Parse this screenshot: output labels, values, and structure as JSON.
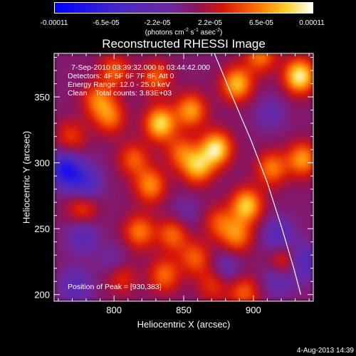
{
  "colorbar": {
    "tick_labels": [
      "-0.00011",
      "-6.5e-05",
      "-2.2e-05",
      "2.2e-05",
      "6.5e-05",
      "0.00011"
    ],
    "tick_values": [
      -0.00011,
      -6.5e-05,
      -2.2e-05,
      2.2e-05,
      6.5e-05,
      0.00011
    ],
    "unit_main": "(photons cm",
    "unit_sup1": "-2",
    "unit_mid1": " s",
    "unit_sup2": "-1",
    "unit_mid2": " asec",
    "unit_sup3": "-2",
    "unit_end": ")"
  },
  "annotations": {
    "time_range": "7-Sep-2010 03:39:32.000 to 03:44:42.000",
    "detectors": "Detectors: 4F 5F 6F 7F 8F, Att 0",
    "energy": "Energy Range: 12.0 - 25.0 keV",
    "clean": "Clean    Total counts: 3.83E+03",
    "peak": "Position of Peak = [930,383]"
  },
  "footer": "4-Aug-2013 14:39",
  "chart_data": {
    "type": "heatmap",
    "title": "Reconstructed RHESSI Image",
    "xlabel": "Heliocentric X (arcsec)",
    "ylabel": "Heliocentric Y (arcsec)",
    "xlim": [
      757,
      943
    ],
    "ylim": [
      195,
      383
    ],
    "x_ticks": [
      800,
      850,
      900
    ],
    "y_ticks": [
      200,
      250,
      300,
      350
    ],
    "colorbar_range": [
      -0.00011,
      0.00011
    ],
    "colormap": "blue-purple-red-orange-yellow-white",
    "peak": [
      930,
      383
    ],
    "limb": [
      [
        872,
        383
      ],
      [
        885,
        350
      ],
      [
        898,
        318
      ],
      [
        910,
        285
      ],
      [
        920,
        252
      ],
      [
        929,
        220
      ],
      [
        934,
        200
      ]
    ],
    "blobs": [
      {
        "x": 888,
        "y": 360,
        "v": 0.8
      },
      {
        "x": 905,
        "y": 382,
        "v": 0.6
      },
      {
        "x": 933,
        "y": 366,
        "v": 1.0
      },
      {
        "x": 935,
        "y": 303,
        "v": 0.7
      },
      {
        "x": 913,
        "y": 296,
        "v": 0.6
      },
      {
        "x": 873,
        "y": 311,
        "v": 0.95
      },
      {
        "x": 860,
        "y": 297,
        "v": 0.75
      },
      {
        "x": 855,
        "y": 340,
        "v": 0.7
      },
      {
        "x": 833,
        "y": 330,
        "v": 0.9
      },
      {
        "x": 848,
        "y": 308,
        "v": 0.5
      },
      {
        "x": 826,
        "y": 283,
        "v": 0.65
      },
      {
        "x": 814,
        "y": 303,
        "v": 0.5
      },
      {
        "x": 797,
        "y": 335,
        "v": 0.55
      },
      {
        "x": 788,
        "y": 348,
        "v": 0.55
      },
      {
        "x": 800,
        "y": 370,
        "v": 0.5
      },
      {
        "x": 830,
        "y": 365,
        "v": 0.5
      },
      {
        "x": 818,
        "y": 248,
        "v": 0.6
      },
      {
        "x": 842,
        "y": 246,
        "v": 0.55
      },
      {
        "x": 836,
        "y": 215,
        "v": 0.55
      },
      {
        "x": 858,
        "y": 228,
        "v": 0.5
      },
      {
        "x": 875,
        "y": 255,
        "v": 0.45
      },
      {
        "x": 895,
        "y": 268,
        "v": 0.85
      },
      {
        "x": 888,
        "y": 245,
        "v": 0.6
      },
      {
        "x": 922,
        "y": 225,
        "v": 0.55
      },
      {
        "x": 777,
        "y": 266,
        "v": 0.45
      },
      {
        "x": 769,
        "y": 320,
        "v": 0.4
      },
      {
        "x": 893,
        "y": 202,
        "v": 0.5
      },
      {
        "x": 805,
        "y": 214,
        "v": 0.4
      },
      {
        "x": 871,
        "y": 208,
        "v": 0.4
      },
      {
        "x": 765,
        "y": 295,
        "v": -0.9
      },
      {
        "x": 779,
        "y": 285,
        "v": -0.6
      },
      {
        "x": 777,
        "y": 245,
        "v": -0.4
      },
      {
        "x": 772,
        "y": 207,
        "v": -0.4
      },
      {
        "x": 800,
        "y": 225,
        "v": -0.25
      },
      {
        "x": 918,
        "y": 245,
        "v": -0.45
      },
      {
        "x": 935,
        "y": 225,
        "v": -0.55
      },
      {
        "x": 918,
        "y": 213,
        "v": -0.4
      },
      {
        "x": 880,
        "y": 220,
        "v": -0.3
      },
      {
        "x": 851,
        "y": 262,
        "v": -0.2
      },
      {
        "x": 912,
        "y": 338,
        "v": -0.25
      }
    ]
  }
}
